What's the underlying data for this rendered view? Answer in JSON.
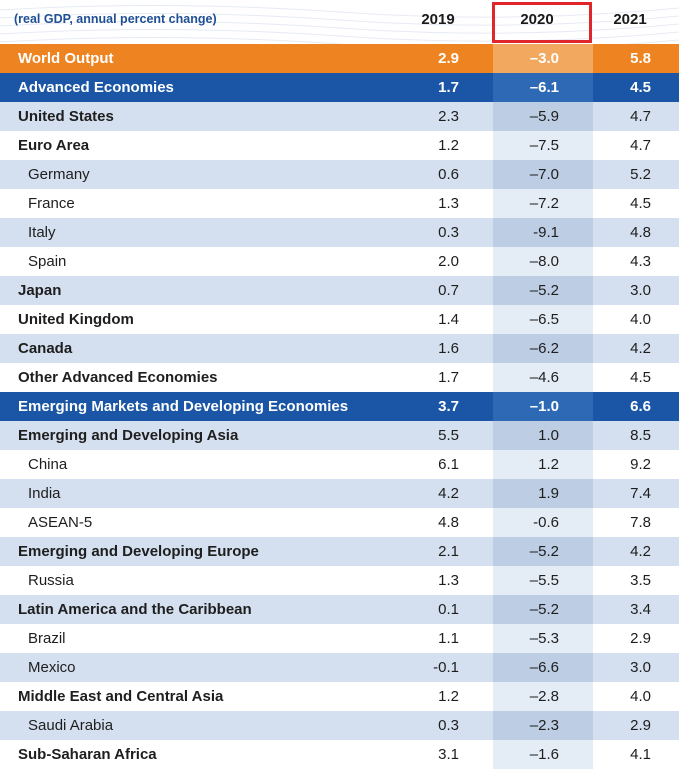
{
  "table": {
    "subtitle": "(real GDP, annual percent change)",
    "columns": [
      "2019",
      "2020",
      "2021"
    ],
    "highlighted_column": "2020",
    "highlight_color": "#e0262b",
    "rows": [
      {
        "label": "World Output",
        "v2019": "2.9",
        "v2020": "–3.0",
        "v2021": "5.8",
        "style": "orange"
      },
      {
        "label": "Advanced Economies",
        "v2019": "1.7",
        "v2020": "–6.1",
        "v2021": "4.5",
        "style": "blue"
      },
      {
        "label": "United States",
        "v2019": "2.3",
        "v2020": "–5.9",
        "v2021": "4.7",
        "style": "grp"
      },
      {
        "label": "Euro Area",
        "v2019": "1.2",
        "v2020": "–7.5",
        "v2021": "4.7",
        "style": "grp"
      },
      {
        "label": "Germany",
        "v2019": "0.6",
        "v2020": "–7.0",
        "v2021": "5.2",
        "style": "sub"
      },
      {
        "label": "France",
        "v2019": "1.3",
        "v2020": "–7.2",
        "v2021": "4.5",
        "style": "sub"
      },
      {
        "label": "Italy",
        "v2019": "0.3",
        "v2020": "-9.1",
        "v2021": "4.8",
        "style": "sub"
      },
      {
        "label": "Spain",
        "v2019": "2.0",
        "v2020": "–8.0",
        "v2021": "4.3",
        "style": "sub"
      },
      {
        "label": "Japan",
        "v2019": "0.7",
        "v2020": "–5.2",
        "v2021": "3.0",
        "style": "grp"
      },
      {
        "label": "United Kingdom",
        "v2019": "1.4",
        "v2020": "–6.5",
        "v2021": "4.0",
        "style": "grp"
      },
      {
        "label": "Canada",
        "v2019": "1.6",
        "v2020": "–6.2",
        "v2021": "4.2",
        "style": "grp"
      },
      {
        "label": "Other Advanced Economies",
        "v2019": "1.7",
        "v2020": "–4.6",
        "v2021": "4.5",
        "style": "grp"
      },
      {
        "label": "Emerging Markets and Developing Economies",
        "v2019": "3.7",
        "v2020": "–1.0",
        "v2021": "6.6",
        "style": "blue"
      },
      {
        "label": "Emerging and Developing Asia",
        "v2019": "5.5",
        "v2020": "1.0",
        "v2021": "8.5",
        "style": "grp"
      },
      {
        "label": "China",
        "v2019": "6.1",
        "v2020": "1.2",
        "v2021": "9.2",
        "style": "sub"
      },
      {
        "label": "India",
        "v2019": "4.2",
        "v2020": "1.9",
        "v2021": "7.4",
        "style": "sub"
      },
      {
        "label": "ASEAN-5",
        "v2019": "4.8",
        "v2020": "-0.6",
        "v2021": "7.8",
        "style": "sub"
      },
      {
        "label": "Emerging and Developing Europe",
        "v2019": "2.1",
        "v2020": "–5.2",
        "v2021": "4.2",
        "style": "grp"
      },
      {
        "label": "Russia",
        "v2019": "1.3",
        "v2020": "–5.5",
        "v2021": "3.5",
        "style": "sub"
      },
      {
        "label": "Latin America and the Caribbean",
        "v2019": "0.1",
        "v2020": "–5.2",
        "v2021": "3.4",
        "style": "grp"
      },
      {
        "label": "Brazil",
        "v2019": "1.1",
        "v2020": "–5.3",
        "v2021": "2.9",
        "style": "sub"
      },
      {
        "label": "Mexico",
        "v2019": "-0.1",
        "v2020": "–6.6",
        "v2021": "3.0",
        "style": "sub"
      },
      {
        "label": "Middle East and Central Asia",
        "v2019": "1.2",
        "v2020": "–2.8",
        "v2021": "4.0",
        "style": "grp"
      },
      {
        "label": "Saudi Arabia",
        "v2019": "0.3",
        "v2020": "–2.3",
        "v2021": "2.9",
        "style": "sub"
      },
      {
        "label": "Sub-Saharan Africa",
        "v2019": "3.1",
        "v2020": "–1.6",
        "v2021": "4.1",
        "style": "grp"
      }
    ]
  },
  "chart_data": {
    "type": "table",
    "title": "(real GDP, annual percent change)",
    "columns": [
      "2019",
      "2020",
      "2021"
    ],
    "series": [
      {
        "name": "2019",
        "values": [
          2.9,
          1.7,
          2.3,
          1.2,
          0.6,
          1.3,
          0.3,
          2.0,
          0.7,
          1.4,
          1.6,
          1.7,
          3.7,
          5.5,
          6.1,
          4.2,
          4.8,
          2.1,
          1.3,
          0.1,
          1.1,
          -0.1,
          1.2,
          0.3,
          3.1
        ]
      },
      {
        "name": "2020",
        "values": [
          -3.0,
          -6.1,
          -5.9,
          -7.5,
          -7.0,
          -7.2,
          -9.1,
          -8.0,
          -5.2,
          -6.5,
          -6.2,
          -4.6,
          -1.0,
          1.0,
          1.2,
          1.9,
          -0.6,
          -5.2,
          -5.5,
          -5.2,
          -5.3,
          -6.6,
          -2.8,
          -2.3,
          -1.6
        ]
      },
      {
        "name": "2021",
        "values": [
          5.8,
          4.5,
          4.7,
          4.7,
          5.2,
          4.5,
          4.8,
          4.3,
          3.0,
          4.0,
          4.2,
          4.5,
          6.6,
          8.5,
          9.2,
          7.4,
          7.8,
          4.2,
          3.5,
          3.4,
          2.9,
          3.0,
          4.0,
          2.9,
          4.1
        ]
      }
    ],
    "categories": [
      "World Output",
      "Advanced Economies",
      "United States",
      "Euro Area",
      "Germany",
      "France",
      "Italy",
      "Spain",
      "Japan",
      "United Kingdom",
      "Canada",
      "Other Advanced Economies",
      "Emerging Markets and Developing Economies",
      "Emerging and Developing Asia",
      "China",
      "India",
      "ASEAN-5",
      "Emerging and Developing Europe",
      "Russia",
      "Latin America and the Caribbean",
      "Brazil",
      "Mexico",
      "Middle East and Central Asia",
      "Saudi Arabia",
      "Sub-Saharan Africa"
    ]
  }
}
